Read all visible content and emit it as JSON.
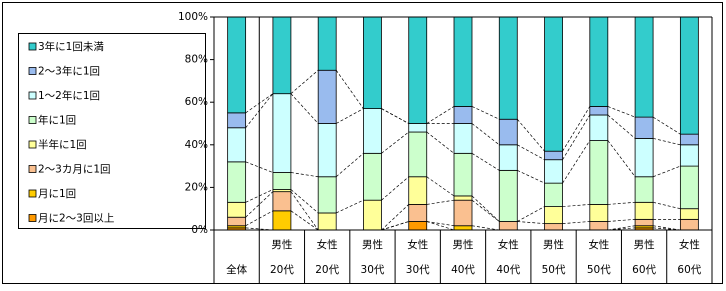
{
  "chart_data": {
    "type": "stacked-bar",
    "categories": [
      [
        "全体"
      ],
      [
        "男性",
        "20代"
      ],
      [
        "女性",
        "20代"
      ],
      [
        "男性",
        "30代"
      ],
      [
        "女性",
        "30代"
      ],
      [
        "男性",
        "40代"
      ],
      [
        "女性",
        "40代"
      ],
      [
        "男性",
        "50代"
      ],
      [
        "女性",
        "50代"
      ],
      [
        "男性",
        "60代"
      ],
      [
        "女性",
        "60代"
      ]
    ],
    "series": [
      {
        "name": "月に2～3回以上",
        "color": "#ff9900",
        "values": [
          1,
          0,
          0,
          0,
          4,
          0,
          0,
          0,
          0,
          1,
          0
        ]
      },
      {
        "name": "月に1回",
        "color": "#ffcc00",
        "values": [
          1,
          9,
          0,
          0,
          0,
          2,
          0,
          0,
          0,
          1,
          0
        ]
      },
      {
        "name": "2～3カ月に1回",
        "color": "#fac090",
        "values": [
          4,
          9,
          0,
          0,
          8,
          12,
          4,
          3,
          4,
          3,
          5
        ]
      },
      {
        "name": "半年に1回",
        "color": "#ffff99",
        "values": [
          7,
          1,
          8,
          14,
          13,
          2,
          0,
          8,
          8,
          8,
          5
        ]
      },
      {
        "name": "年に1回",
        "color": "#ccffcc",
        "values": [
          19,
          8,
          17,
          22,
          21,
          20,
          24,
          11,
          30,
          12,
          20
        ]
      },
      {
        "name": "1～2年に1回",
        "color": "#ccffff",
        "values": [
          16,
          37,
          25,
          21,
          4,
          14,
          12,
          11,
          12,
          18,
          10
        ]
      },
      {
        "name": "2～3年に1回",
        "color": "#99bbee",
        "values": [
          7,
          0,
          25,
          0,
          0,
          8,
          12,
          4,
          4,
          10,
          5
        ]
      },
      {
        "name": "3年に1回未満",
        "color": "#33cccc",
        "values": [
          45,
          36,
          25,
          43,
          50,
          42,
          48,
          63,
          42,
          47,
          55
        ]
      }
    ],
    "ylim": [
      0,
      100
    ],
    "yticks": [
      {
        "value": 0,
        "label": "0%"
      },
      {
        "value": 20,
        "label": "20%"
      },
      {
        "value": 40,
        "label": "40%"
      },
      {
        "value": 60,
        "label": "60%"
      },
      {
        "value": 80,
        "label": "80%"
      },
      {
        "value": 100,
        "label": "100%"
      }
    ]
  }
}
